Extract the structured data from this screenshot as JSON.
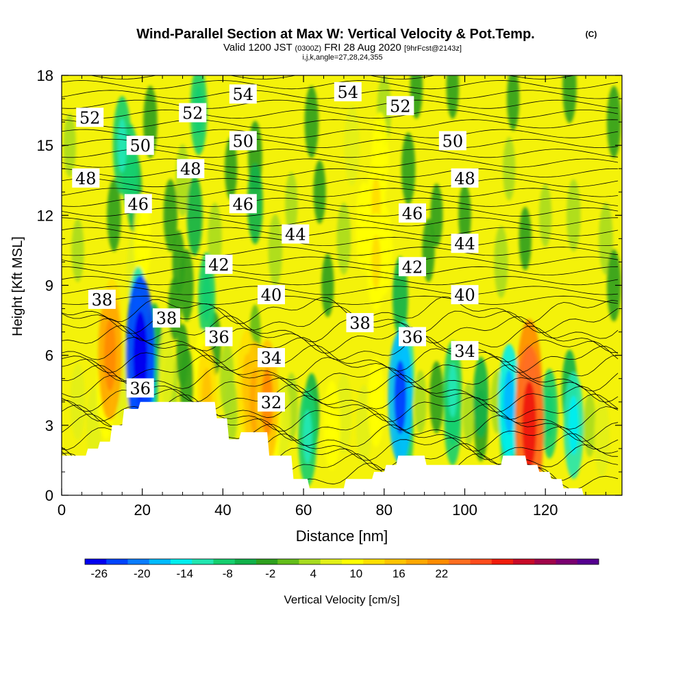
{
  "chart_data": {
    "type": "heatmap",
    "title": "Wind-Parallel Section at Max W: Vertical Velocity & Pot.Temp.",
    "title_mark": "(C)",
    "subtitle": {
      "prefix": "Valid 1200 JST",
      "utc": "(0300Z)",
      "date": "FRI 28 Aug 2020",
      "forecast": "[9hrFcst@2143z]"
    },
    "params_line": "i,j,k,angle=27,28,24,355",
    "xlabel": "Distance [nm]",
    "ylabel": "Height [Kft MSL]",
    "xlim": [
      0,
      139
    ],
    "ylim": [
      0,
      18
    ],
    "x_ticks": [
      "0",
      "20",
      "40",
      "60",
      "80",
      "100",
      "120"
    ],
    "y_ticks": [
      "0",
      "3",
      "6",
      "9",
      "12",
      "15",
      "18"
    ],
    "grid": false,
    "colorbar": {
      "label": "Vertical Velocity [cm/s]",
      "tick_labels": [
        "-26",
        "-20",
        "-14",
        "-8",
        "-2",
        "4",
        "10",
        "16",
        "22"
      ],
      "colors": [
        "#0000f0",
        "#0044ff",
        "#0a7dff",
        "#00bbff",
        "#00eeee",
        "#22e6b0",
        "#16cf6e",
        "#11b14a",
        "#2ea01e",
        "#63bd1a",
        "#a8dc20",
        "#e2f018",
        "#ffff00",
        "#ffe000",
        "#ffc400",
        "#ffa800",
        "#ff8c00",
        "#ff6e20",
        "#ff4c1c",
        "#f01c0c",
        "#c80a28",
        "#a0044a",
        "#7a0070",
        "#55008f"
      ]
    },
    "isentrope_labels": [
      {
        "value": "54",
        "x": 45,
        "y": 17.2
      },
      {
        "value": "54",
        "x": 71,
        "y": 17.3
      },
      {
        "value": "52",
        "x": 7,
        "y": 16.2
      },
      {
        "value": "52",
        "x": 32.5,
        "y": 16.4
      },
      {
        "value": "52",
        "x": 84,
        "y": 16.7
      },
      {
        "value": "50",
        "x": 19.5,
        "y": 15.0
      },
      {
        "value": "50",
        "x": 45,
        "y": 15.2
      },
      {
        "value": "50",
        "x": 97,
        "y": 15.2
      },
      {
        "value": "48",
        "x": 6,
        "y": 13.6
      },
      {
        "value": "48",
        "x": 32,
        "y": 14.0
      },
      {
        "value": "48",
        "x": 100,
        "y": 13.6
      },
      {
        "value": "46",
        "x": 19,
        "y": 12.5
      },
      {
        "value": "46",
        "x": 45,
        "y": 12.5
      },
      {
        "value": "46",
        "x": 87,
        "y": 12.1
      },
      {
        "value": "44",
        "x": 58,
        "y": 11.2
      },
      {
        "value": "44",
        "x": 100,
        "y": 10.8
      },
      {
        "value": "42",
        "x": 39,
        "y": 9.9
      },
      {
        "value": "42",
        "x": 87,
        "y": 9.8
      },
      {
        "value": "40",
        "x": 52,
        "y": 8.6
      },
      {
        "value": "40",
        "x": 100,
        "y": 8.6
      },
      {
        "value": "38",
        "x": 10,
        "y": 8.4
      },
      {
        "value": "38",
        "x": 26,
        "y": 7.6
      },
      {
        "value": "38",
        "x": 74,
        "y": 7.4
      },
      {
        "value": "36",
        "x": 39,
        "y": 6.8
      },
      {
        "value": "36",
        "x": 87,
        "y": 6.8
      },
      {
        "value": "36",
        "x": 19.5,
        "y": 4.6
      },
      {
        "value": "34",
        "x": 52,
        "y": 5.9
      },
      {
        "value": "34",
        "x": 100,
        "y": 6.2
      },
      {
        "value": "32",
        "x": 52,
        "y": 4.0
      }
    ],
    "terrain": [
      {
        "x": 0,
        "y": 1.7
      },
      {
        "x": 6,
        "y": 1.7
      },
      {
        "x": 6.5,
        "y": 2.0
      },
      {
        "x": 9,
        "y": 2.0
      },
      {
        "x": 9.5,
        "y": 2.3
      },
      {
        "x": 12,
        "y": 2.3
      },
      {
        "x": 12.5,
        "y": 3.0
      },
      {
        "x": 15,
        "y": 3.0
      },
      {
        "x": 15.5,
        "y": 3.7
      },
      {
        "x": 19,
        "y": 3.7
      },
      {
        "x": 19.5,
        "y": 4.0
      },
      {
        "x": 38,
        "y": 4.0
      },
      {
        "x": 38.5,
        "y": 3.3
      },
      {
        "x": 41,
        "y": 3.3
      },
      {
        "x": 41.5,
        "y": 2.4
      },
      {
        "x": 44,
        "y": 2.4
      },
      {
        "x": 44.5,
        "y": 2.7
      },
      {
        "x": 51,
        "y": 2.7
      },
      {
        "x": 51.5,
        "y": 1.7
      },
      {
        "x": 57,
        "y": 1.7
      },
      {
        "x": 57.5,
        "y": 0.7
      },
      {
        "x": 61,
        "y": 0.7
      },
      {
        "x": 61.5,
        "y": 0.3
      },
      {
        "x": 70,
        "y": 0.3
      },
      {
        "x": 70.5,
        "y": 0.7
      },
      {
        "x": 77,
        "y": 0.7
      },
      {
        "x": 77.5,
        "y": 1.0
      },
      {
        "x": 80,
        "y": 1.0
      },
      {
        "x": 80.5,
        "y": 1.3
      },
      {
        "x": 83,
        "y": 1.3
      },
      {
        "x": 83.5,
        "y": 1.7
      },
      {
        "x": 90,
        "y": 1.7
      },
      {
        "x": 90.5,
        "y": 1.3
      },
      {
        "x": 109,
        "y": 1.3
      },
      {
        "x": 109.5,
        "y": 1.7
      },
      {
        "x": 115,
        "y": 1.7
      },
      {
        "x": 115.5,
        "y": 1.3
      },
      {
        "x": 118,
        "y": 1.3
      },
      {
        "x": 118.5,
        "y": 1.0
      },
      {
        "x": 121,
        "y": 1.0
      },
      {
        "x": 121.5,
        "y": 0.7
      },
      {
        "x": 124,
        "y": 0.7
      },
      {
        "x": 124.5,
        "y": 0.3
      },
      {
        "x": 129,
        "y": 0.3
      },
      {
        "x": 129.5,
        "y": 0.0
      }
    ],
    "velocity_cells": [
      {
        "x": 12,
        "y": 6.0,
        "value": 17
      },
      {
        "x": 12.5,
        "y": 7.0,
        "value": 12
      },
      {
        "x": 11,
        "y": 4.5,
        "value": 10
      },
      {
        "x": 4,
        "y": 4.0,
        "value": 5
      },
      {
        "x": 8,
        "y": 3.0,
        "value": 5
      },
      {
        "x": 15,
        "y": 5.0,
        "value": 6
      },
      {
        "x": 19.5,
        "y": 6.0,
        "value": -24
      },
      {
        "x": 20,
        "y": 4.5,
        "value": -18
      },
      {
        "x": 19,
        "y": 7.5,
        "value": -12
      },
      {
        "x": 23,
        "y": 6.5,
        "value": -6
      },
      {
        "x": 22,
        "y": 5.0,
        "value": -8
      },
      {
        "x": 26,
        "y": 5.5,
        "value": 6
      },
      {
        "x": 27,
        "y": 4.6,
        "value": 4
      },
      {
        "x": 30,
        "y": 6.0,
        "value": -2
      },
      {
        "x": 31,
        "y": 4.8,
        "value": -4
      },
      {
        "x": 35,
        "y": 5.0,
        "value": 10
      },
      {
        "x": 36,
        "y": 4.2,
        "value": 12
      },
      {
        "x": 38,
        "y": 6.5,
        "value": -2
      },
      {
        "x": 36,
        "y": 8.5,
        "value": -8
      },
      {
        "x": 41,
        "y": 5.0,
        "value": 4
      },
      {
        "x": 42,
        "y": 3.6,
        "value": 3
      },
      {
        "x": 46,
        "y": 4.8,
        "value": 12
      },
      {
        "x": 48,
        "y": 4.0,
        "value": 15
      },
      {
        "x": 47,
        "y": 3.2,
        "value": 10
      },
      {
        "x": 51,
        "y": 4.0,
        "value": 16
      },
      {
        "x": 52,
        "y": 3.2,
        "value": 10
      },
      {
        "x": 55,
        "y": 3.2,
        "value": 5
      },
      {
        "x": 57,
        "y": 3.8,
        "value": 3
      },
      {
        "x": 61,
        "y": 2.5,
        "value": -10
      },
      {
        "x": 62,
        "y": 3.5,
        "value": -6
      },
      {
        "x": 67,
        "y": 3.0,
        "value": 8
      },
      {
        "x": 70,
        "y": 3.5,
        "value": 6
      },
      {
        "x": 75,
        "y": 3.0,
        "value": 6
      },
      {
        "x": 78,
        "y": 4.0,
        "value": 8
      },
      {
        "x": 84,
        "y": 4.2,
        "value": -18
      },
      {
        "x": 85,
        "y": 5.2,
        "value": -12
      },
      {
        "x": 85,
        "y": 2.8,
        "value": -10
      },
      {
        "x": 84,
        "y": 8.5,
        "value": -6
      },
      {
        "x": 80,
        "y": 10.5,
        "value": 8
      },
      {
        "x": 89,
        "y": 4.0,
        "value": 2
      },
      {
        "x": 93,
        "y": 4.2,
        "value": -4
      },
      {
        "x": 97,
        "y": 4.5,
        "value": -10
      },
      {
        "x": 97,
        "y": 3.2,
        "value": -8
      },
      {
        "x": 101,
        "y": 3.5,
        "value": 2
      },
      {
        "x": 104,
        "y": 4.2,
        "value": -6
      },
      {
        "x": 104,
        "y": 3.0,
        "value": -4
      },
      {
        "x": 108,
        "y": 4.0,
        "value": 2
      },
      {
        "x": 111,
        "y": 4.0,
        "value": -14
      },
      {
        "x": 111,
        "y": 2.8,
        "value": -10
      },
      {
        "x": 116,
        "y": 3.0,
        "value": 24
      },
      {
        "x": 116,
        "y": 4.5,
        "value": 20
      },
      {
        "x": 116,
        "y": 2.0,
        "value": 18
      },
      {
        "x": 121,
        "y": 3.5,
        "value": -8
      },
      {
        "x": 127,
        "y": 3.0,
        "value": -12
      },
      {
        "x": 126,
        "y": 4.5,
        "value": -6
      },
      {
        "x": 131,
        "y": 3.0,
        "value": 2
      },
      {
        "x": 134,
        "y": 2.5,
        "value": 6
      },
      {
        "x": 18,
        "y": 9.5,
        "value": 6
      },
      {
        "x": 20,
        "y": 11.0,
        "value": 8
      },
      {
        "x": 18,
        "y": 13.0,
        "value": -6
      },
      {
        "x": 15,
        "y": 15.0,
        "value": -10
      },
      {
        "x": 17,
        "y": 14.0,
        "value": -8
      },
      {
        "x": 13,
        "y": 12.0,
        "value": -4
      },
      {
        "x": 22,
        "y": 16.0,
        "value": -4
      },
      {
        "x": 27,
        "y": 12.0,
        "value": -4
      },
      {
        "x": 29,
        "y": 10.0,
        "value": -2
      },
      {
        "x": 30,
        "y": 13.5,
        "value": 4
      },
      {
        "x": 34,
        "y": 16.5,
        "value": -8
      },
      {
        "x": 33,
        "y": 12.0,
        "value": -6
      },
      {
        "x": 31,
        "y": 9.0,
        "value": -4
      },
      {
        "x": 38,
        "y": 11.0,
        "value": 4
      },
      {
        "x": 42,
        "y": 14.0,
        "value": -2
      },
      {
        "x": 48,
        "y": 12.5,
        "value": -6
      },
      {
        "x": 48,
        "y": 14.5,
        "value": -4
      },
      {
        "x": 53,
        "y": 10.5,
        "value": 4
      },
      {
        "x": 57,
        "y": 12.5,
        "value": 2
      },
      {
        "x": 62,
        "y": 16.0,
        "value": -4
      },
      {
        "x": 64,
        "y": 13.0,
        "value": -2
      },
      {
        "x": 70,
        "y": 11.0,
        "value": 4
      },
      {
        "x": 72,
        "y": 15.0,
        "value": 6
      },
      {
        "x": 66,
        "y": 9.0,
        "value": -2
      },
      {
        "x": 78,
        "y": 12.5,
        "value": 10
      },
      {
        "x": 79,
        "y": 14.5,
        "value": 8
      },
      {
        "x": 78,
        "y": 10.0,
        "value": 10
      },
      {
        "x": 80,
        "y": 16.5,
        "value": 4
      },
      {
        "x": 75,
        "y": 11.5,
        "value": 8
      },
      {
        "x": 86,
        "y": 14.0,
        "value": -4
      },
      {
        "x": 91,
        "y": 10.5,
        "value": -2
      },
      {
        "x": 93,
        "y": 12.0,
        "value": -2
      },
      {
        "x": 100,
        "y": 12.0,
        "value": -2
      },
      {
        "x": 109,
        "y": 10.0,
        "value": 4
      },
      {
        "x": 111,
        "y": 14.0,
        "value": 2
      },
      {
        "x": 115,
        "y": 11.0,
        "value": -2
      },
      {
        "x": 120,
        "y": 12.0,
        "value": 2
      },
      {
        "x": 127,
        "y": 12.0,
        "value": 4
      },
      {
        "x": 135,
        "y": 11.0,
        "value": 4
      },
      {
        "x": 88,
        "y": 17.5,
        "value": -2
      },
      {
        "x": 97,
        "y": 17.5,
        "value": -2
      },
      {
        "x": 112,
        "y": 17.0,
        "value": -2
      },
      {
        "x": 126,
        "y": 17.5,
        "value": -4
      },
      {
        "x": 137,
        "y": 16.0,
        "value": -4
      },
      {
        "x": 137,
        "y": 9.0,
        "value": -4
      },
      {
        "x": 2,
        "y": 15.0,
        "value": 2
      },
      {
        "x": 4,
        "y": 10.5,
        "value": 2
      },
      {
        "x": 28,
        "y": 8.0,
        "value": -2
      },
      {
        "x": 48,
        "y": 7.0,
        "value": 0
      }
    ]
  }
}
